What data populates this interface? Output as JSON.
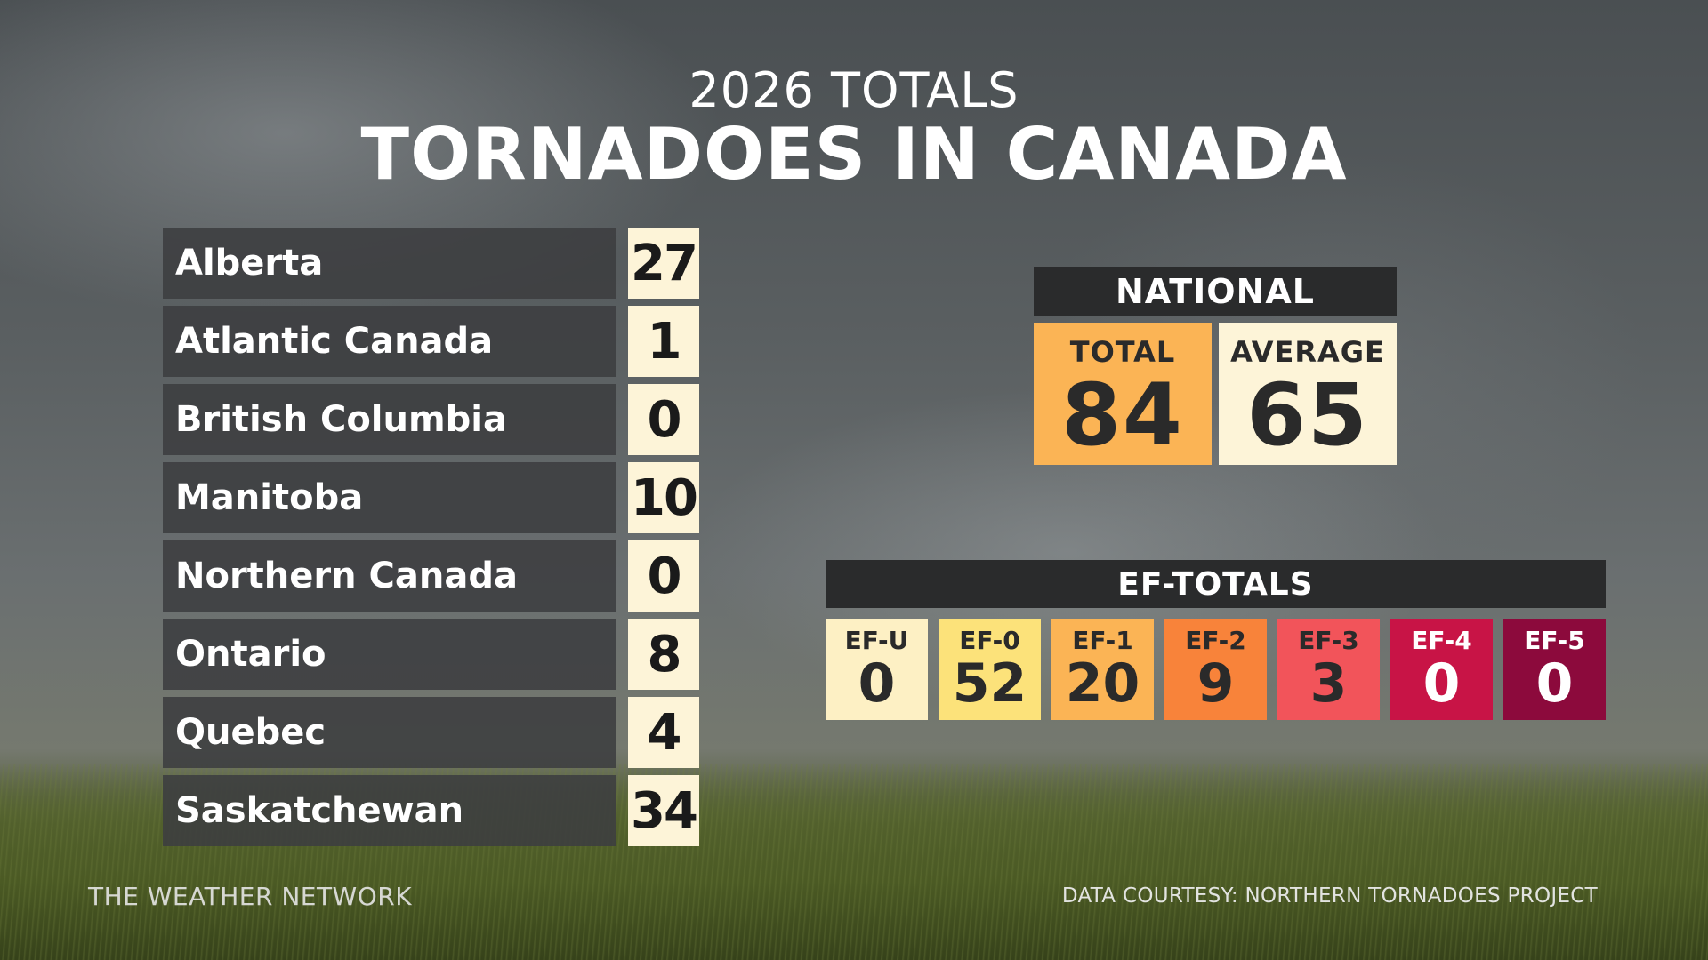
{
  "header": {
    "subtitle": "2026 TOTALS",
    "title": "TORNADOES IN CANADA"
  },
  "regions": [
    {
      "name": "Alberta",
      "count": "27"
    },
    {
      "name": "Atlantic Canada",
      "count": "1"
    },
    {
      "name": "British Columbia",
      "count": "0"
    },
    {
      "name": "Manitoba",
      "count": "10"
    },
    {
      "name": "Northern Canada",
      "count": "0"
    },
    {
      "name": "Ontario",
      "count": "8"
    },
    {
      "name": "Quebec",
      "count": "4"
    },
    {
      "name": "Saskatchewan",
      "count": "34"
    }
  ],
  "national": {
    "header": "NATIONAL",
    "total_label": "TOTAL",
    "total_value": "84",
    "average_label": "AVERAGE",
    "average_value": "65",
    "total_color": "#fbb455",
    "average_color": "#fdf4d8"
  },
  "ef_totals": {
    "header": "EF-TOTALS",
    "items": [
      {
        "label": "EF-U",
        "value": "0",
        "bg": "#fdf0c4",
        "fg": "#2a2a2a"
      },
      {
        "label": "EF-0",
        "value": "52",
        "bg": "#fce27a",
        "fg": "#2a2a2a"
      },
      {
        "label": "EF-1",
        "value": "20",
        "bg": "#fbb455",
        "fg": "#2a2a2a"
      },
      {
        "label": "EF-2",
        "value": "9",
        "bg": "#f8833a",
        "fg": "#2a2a2a"
      },
      {
        "label": "EF-3",
        "value": "3",
        "bg": "#f2545a",
        "fg": "#2a2a2a"
      },
      {
        "label": "EF-4",
        "value": "0",
        "bg": "#c81446",
        "fg": "#ffffff"
      },
      {
        "label": "EF-5",
        "value": "0",
        "bg": "#8c0a3c",
        "fg": "#ffffff"
      }
    ]
  },
  "footer": {
    "left": "THE WEATHER NETWORK",
    "right": "DATA COURTESY: NORTHERN TORNADOES PROJECT"
  }
}
